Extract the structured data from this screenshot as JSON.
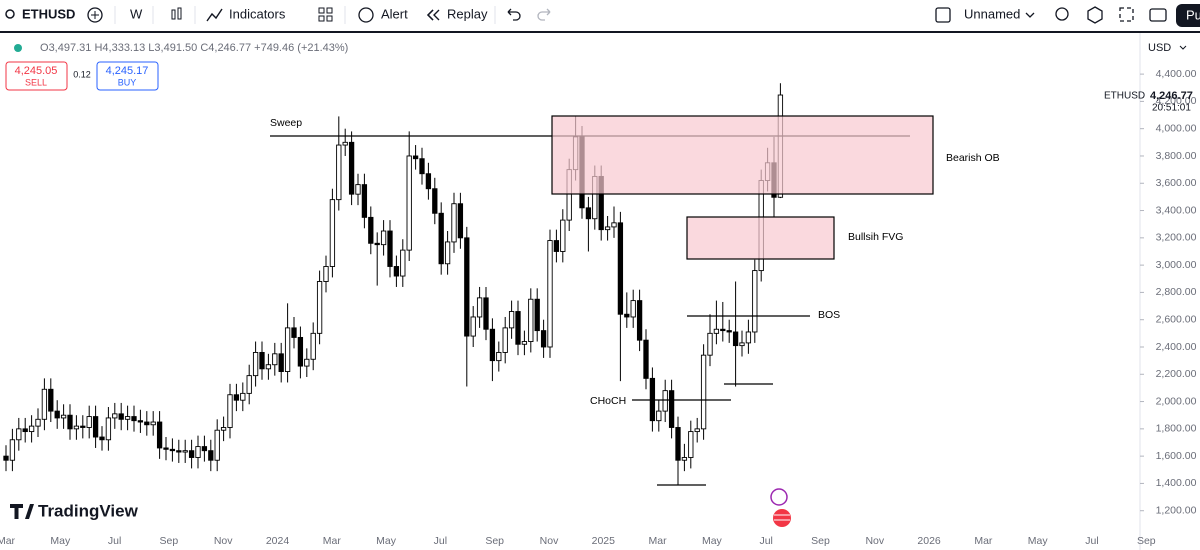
{
  "toolbar": {
    "symbol": "ETHUSD",
    "interval": "W",
    "items": [
      "Indicators",
      "Alert",
      "Replay"
    ],
    "layout_name": "Unnamed",
    "button": "Pu"
  },
  "quote": {
    "ohlc": [
      {
        "key": "O",
        "value": "3,497.31"
      },
      {
        "key": "H",
        "value": "4,333.13"
      },
      {
        "key": "L",
        "value": "3,491.50"
      },
      {
        "key": "C",
        "value": "4,246.77"
      }
    ],
    "change": "+749.46 (+21.43%)",
    "sell_price": "4,245.05",
    "sell_label": "SELL",
    "spread": "0.12",
    "buy_price": "4,245.17",
    "buy_label": "BUY",
    "currency": "USD",
    "last_symbol": "ETHUSD",
    "last_price": "4,246.77",
    "countdown": "20:51:01"
  },
  "branding": "TradingView",
  "chart_data": {
    "type": "candlestick",
    "up_color": "#ffffff",
    "down_color": "#000000",
    "outline_color": "#000000",
    "open": [
      1600,
      1570,
      1720,
      1800,
      1780,
      1820,
      1870,
      2090,
      1930,
      1880,
      1900,
      1800,
      1820,
      1810,
      1890,
      1740,
      1720,
      1880,
      1910,
      1870,
      1890,
      1860,
      1850,
      1830,
      1850,
      1660,
      1650,
      1640,
      1630,
      1640,
      1590,
      1670,
      1640,
      1570,
      1790,
      1810,
      2050,
      2010,
      2060,
      2190,
      2360,
      2240,
      2270,
      2350,
      2220,
      2540,
      2470,
      2260,
      2310,
      2500,
      2880,
      2990,
      3480,
      3880,
      3900,
      3520,
      3590,
      3350,
      3160,
      3150,
      3250,
      2990,
      2920,
      3110,
      3800,
      3780,
      3670,
      3560,
      3380,
      3010,
      3170,
      3450,
      3200,
      2480,
      2620,
      2760,
      2530,
      2300,
      2360,
      2540,
      2660,
      2420,
      2440,
      2750,
      2520,
      2400,
      3180,
      3100,
      3330,
      3700,
      3940,
      3420,
      3340,
      3650,
      3260,
      3280,
      3310,
      2640,
      2620,
      2740,
      2450,
      2170,
      1860,
      1930,
      2080,
      1810,
      1570,
      1590,
      1780,
      1800,
      2340,
      2500,
      2530,
      2520,
      2510,
      2410,
      2430,
      2510,
      2960,
      3620,
      3750,
      3497.31
    ],
    "high": [
      1680,
      1800,
      1880,
      1880,
      1900,
      1950,
      2170,
      2170,
      2010,
      1980,
      1980,
      1900,
      1900,
      1970,
      1970,
      1820,
      1960,
      1990,
      1990,
      1970,
      1970,
      1940,
      1930,
      1930,
      1930,
      1740,
      1730,
      1720,
      1720,
      1720,
      1750,
      1750,
      1720,
      1870,
      1890,
      2130,
      2130,
      2140,
      2270,
      2440,
      2440,
      2350,
      2430,
      2430,
      2720,
      2620,
      2550,
      2390,
      2580,
      2960,
      3070,
      3560,
      4090,
      4000,
      3980,
      3670,
      3670,
      3430,
      3240,
      3330,
      3330,
      3070,
      3190,
      3980,
      3880,
      3860,
      3750,
      3640,
      3460,
      3250,
      3530,
      3530,
      3280,
      2700,
      2840,
      2840,
      2610,
      2440,
      2620,
      2740,
      2740,
      2520,
      2830,
      2830,
      2600,
      3260,
      3260,
      3410,
      3780,
      4090,
      4020,
      3500,
      3730,
      3730,
      3360,
      3430,
      3390,
      2800,
      2820,
      2820,
      2530,
      2250,
      2010,
      2160,
      2160,
      1890,
      1690,
      1860,
      1880,
      2420,
      2640,
      2740,
      2730,
      2600,
      2880,
      2520,
      2600,
      3040,
      3700,
      3860,
      3940,
      4333.13
    ],
    "low": [
      1490,
      1490,
      1640,
      1700,
      1700,
      1740,
      1790,
      1850,
      1800,
      1800,
      1720,
      1720,
      1730,
      1730,
      1660,
      1640,
      1640,
      1800,
      1790,
      1790,
      1780,
      1770,
      1750,
      1750,
      1580,
      1570,
      1560,
      1550,
      1550,
      1510,
      1510,
      1560,
      1490,
      1490,
      1710,
      1730,
      1930,
      1930,
      1980,
      2110,
      2160,
      2160,
      2190,
      2140,
      2140,
      2390,
      2170,
      2180,
      2230,
      2420,
      2800,
      2910,
      3400,
      3800,
      3440,
      3440,
      3270,
      3080,
      2850,
      3070,
      2910,
      2840,
      2840,
      3030,
      3700,
      3590,
      3480,
      3300,
      2930,
      2930,
      3090,
      3120,
      2110,
      2400,
      2540,
      2450,
      2150,
      2220,
      2280,
      2460,
      2340,
      2340,
      2360,
      2440,
      2320,
      2320,
      3020,
      3020,
      3250,
      3620,
      3340,
      3100,
      3260,
      3180,
      3180,
      3200,
      2150,
      2540,
      2540,
      2370,
      2090,
      1780,
      1780,
      1850,
      1730,
      1390,
      1490,
      1510,
      1700,
      1720,
      2260,
      2420,
      2440,
      2430,
      2110,
      2330,
      2350,
      2430,
      2880,
      3540,
      3350,
      3491.5
    ],
    "close": [
      1570,
      1720,
      1800,
      1780,
      1820,
      1870,
      2090,
      1930,
      1880,
      1900,
      1800,
      1820,
      1810,
      1890,
      1740,
      1720,
      1880,
      1910,
      1870,
      1890,
      1860,
      1850,
      1830,
      1850,
      1660,
      1650,
      1640,
      1630,
      1640,
      1590,
      1670,
      1640,
      1570,
      1790,
      1810,
      2050,
      2010,
      2060,
      2190,
      2360,
      2240,
      2270,
      2350,
      2220,
      2540,
      2470,
      2260,
      2310,
      2500,
      2880,
      2990,
      3480,
      3880,
      3900,
      3520,
      3590,
      3350,
      3160,
      3150,
      3250,
      2990,
      2920,
      3110,
      3800,
      3780,
      3670,
      3560,
      3380,
      3010,
      3170,
      3450,
      3200,
      2480,
      2620,
      2760,
      2530,
      2300,
      2360,
      2540,
      2660,
      2420,
      2440,
      2750,
      2520,
      2400,
      3180,
      3100,
      3330,
      3700,
      3940,
      3420,
      3340,
      3650,
      3260,
      3280,
      3310,
      2640,
      2620,
      2740,
      2450,
      2170,
      1860,
      1930,
      2080,
      1810,
      1570,
      1590,
      1780,
      1800,
      2340,
      2500,
      2530,
      2520,
      2510,
      2410,
      2430,
      2510,
      2960,
      3620,
      3750,
      3497.31,
      4246.77
    ],
    "ylim": [
      1000,
      4650
    ],
    "yticks": [
      {
        "value": 4400,
        "label": "4,400.00"
      },
      {
        "value": 4200,
        "label": "4,200.00"
      },
      {
        "value": 4000,
        "label": "4,000.00"
      },
      {
        "value": 3800,
        "label": "3,800.00"
      },
      {
        "value": 3600,
        "label": "3,600.00"
      },
      {
        "value": 3400,
        "label": "3,400.00"
      },
      {
        "value": 3200,
        "label": "3,200.00"
      },
      {
        "value": 3000,
        "label": "3,000.00"
      },
      {
        "value": 2800,
        "label": "2,800.00"
      },
      {
        "value": 2600,
        "label": "2,600.00"
      },
      {
        "value": 2400,
        "label": "2,400.00"
      },
      {
        "value": 2200,
        "label": "2,200.00"
      },
      {
        "value": 2000,
        "label": "2,000.00"
      },
      {
        "value": 1800,
        "label": "1,800.00"
      },
      {
        "value": 1600,
        "label": "1,600.00"
      },
      {
        "value": 1400,
        "label": "1,400.00"
      },
      {
        "value": 1200,
        "label": "1,200.00"
      }
    ],
    "xtick_labels": [
      "Mar",
      "May",
      "Jul",
      "Sep",
      "Nov",
      "2024",
      "Mar",
      "May",
      "Jul",
      "Sep",
      "Nov",
      "2025",
      "Mar",
      "May",
      "Jul",
      "Sep",
      "Nov",
      "2026",
      "Mar",
      "May",
      "Jul",
      "Sep"
    ],
    "annotations": {
      "sweep": "Sweep",
      "bearish_ob": "Bearish OB",
      "bullish_fvg": "Bullsih FVG",
      "bos": "BOS",
      "choch": "CHoCH"
    }
  }
}
